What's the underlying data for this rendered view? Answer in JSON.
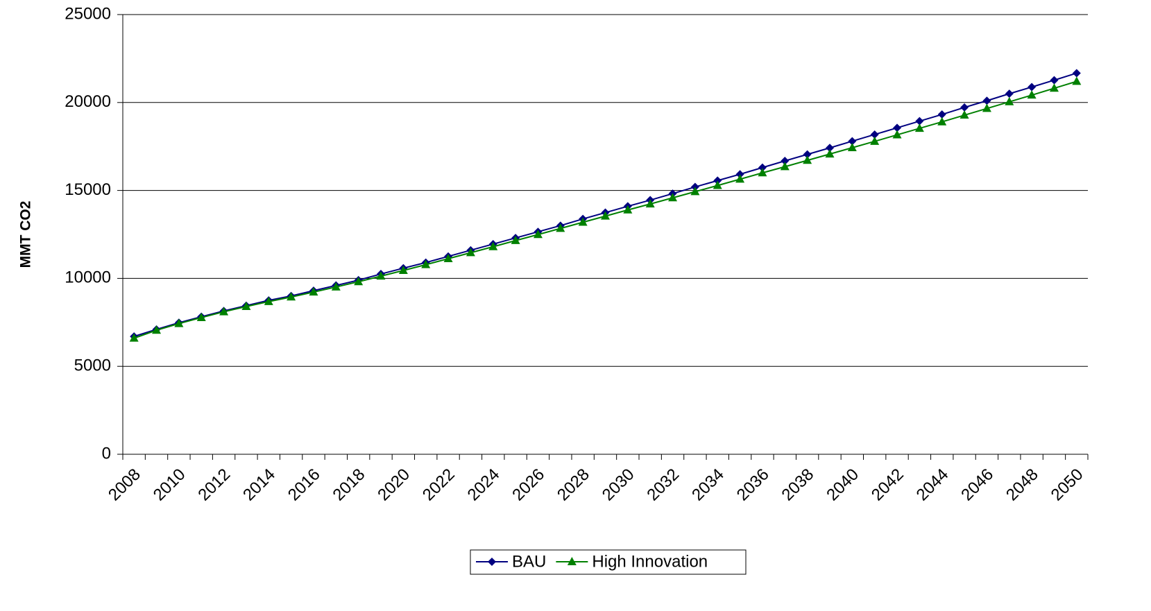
{
  "chart_data": {
    "type": "line",
    "y_label": "MMT CO2",
    "categories": [
      "2008",
      null,
      "2010",
      null,
      "2012",
      null,
      "2014",
      null,
      "2016",
      null,
      "2018",
      null,
      "2020",
      null,
      "2022",
      null,
      "2024",
      null,
      "2026",
      null,
      "2028",
      null,
      "2030",
      null,
      "2032",
      null,
      "2034",
      null,
      "2036",
      null,
      "2038",
      null,
      "2040",
      null,
      "2042",
      null,
      "2044",
      null,
      "2046",
      null,
      "2048",
      null,
      "2050"
    ],
    "series": [
      {
        "name": "BAU",
        "color": "#000080",
        "marker": "diamond",
        "values": [
          6700,
          7100,
          7480,
          7820,
          8150,
          8450,
          8750,
          9000,
          9300,
          9600,
          9900,
          10250,
          10580,
          10900,
          11250,
          11600,
          11950,
          12300,
          12650,
          13000,
          13380,
          13740,
          14100,
          14450,
          14820,
          15200,
          15560,
          15920,
          16300,
          16680,
          17050,
          17420,
          17800,
          18180,
          18560,
          18940,
          19320,
          19720,
          20100,
          20500,
          20880,
          21270,
          21670
        ]
      },
      {
        "name": "High Innovation",
        "color": "#008000",
        "marker": "triangle",
        "values": [
          6600,
          7050,
          7430,
          7770,
          8100,
          8400,
          8680,
          8940,
          9220,
          9510,
          9810,
          10130,
          10450,
          10780,
          11120,
          11460,
          11800,
          12150,
          12490,
          12840,
          13190,
          13540,
          13890,
          14230,
          14580,
          14930,
          15280,
          15640,
          16000,
          16350,
          16710,
          17070,
          17430,
          17790,
          18160,
          18530,
          18900,
          19280,
          19660,
          20040,
          20420,
          20810,
          21200
        ]
      }
    ],
    "ylim": [
      0,
      25000
    ],
    "yticks": [
      0,
      5000,
      10000,
      15000,
      20000,
      25000
    ],
    "grid": true,
    "legend": "bottom"
  }
}
